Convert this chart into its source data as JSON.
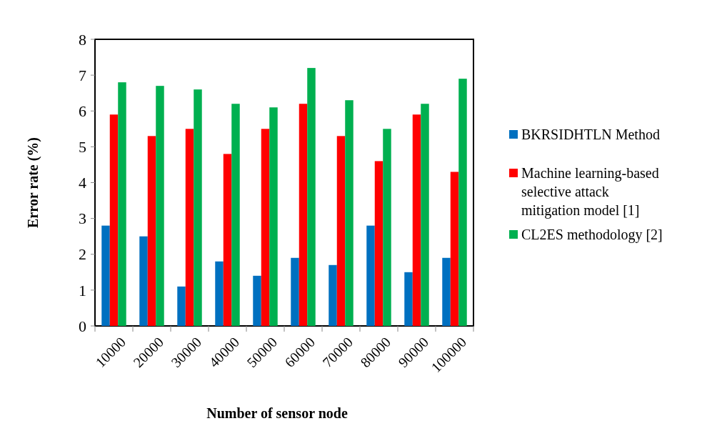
{
  "chart_data": {
    "type": "bar",
    "xlabel": "Number of  sensor node",
    "ylabel": "Error rate (%)",
    "categories": [
      "10000",
      "20000",
      "30000",
      "40000",
      "50000",
      "60000",
      "70000",
      "80000",
      "90000",
      "100000"
    ],
    "series": [
      {
        "name": "BKRSIDHTLN Method",
        "color": "#0070c0",
        "values": [
          2.8,
          2.5,
          1.1,
          1.8,
          1.4,
          1.9,
          1.7,
          2.8,
          1.5,
          1.9
        ]
      },
      {
        "name": "Machine learning-based selective attack mitigation model [1]",
        "color": "#ff0000",
        "values": [
          5.9,
          5.3,
          5.5,
          4.8,
          5.5,
          6.2,
          5.3,
          4.6,
          5.9,
          4.3
        ]
      },
      {
        "name": "CL2ES methodology [2]",
        "color": "#00b050",
        "values": [
          6.8,
          6.7,
          6.6,
          6.2,
          6.1,
          7.2,
          6.3,
          5.5,
          6.2,
          6.9
        ]
      }
    ],
    "ylim": [
      0,
      8
    ],
    "yticks": [
      0,
      1,
      2,
      3,
      4,
      5,
      6,
      7,
      8
    ],
    "grid": false,
    "legend": "right"
  }
}
